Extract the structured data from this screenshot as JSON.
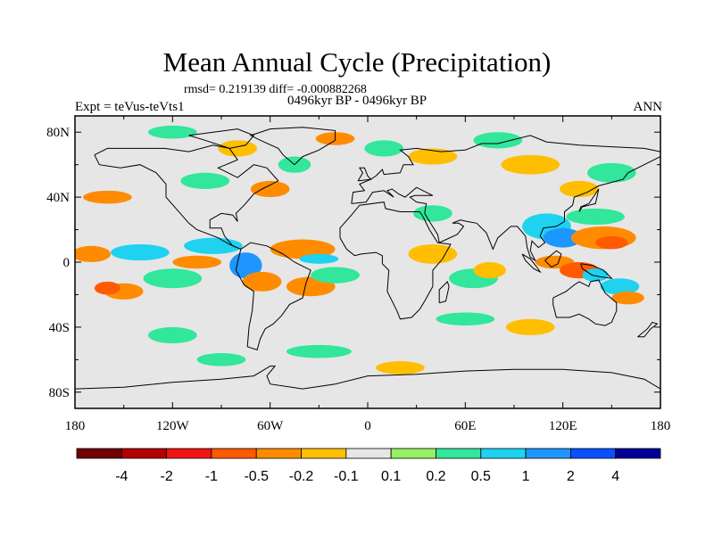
{
  "chart_data": {
    "type": "heatmap",
    "title": "Mean Annual Cycle (Precipitation)",
    "stats_text": "rmsd= 0.219139 diff= -0.000882268",
    "left_label": "Expt = teVus-teVts1",
    "center_label": "0496kyr BP - 0496kyr BP",
    "right_label": "ANN",
    "x_ticks": [
      {
        "value": -180,
        "label": "180"
      },
      {
        "value": -120,
        "label": "120W"
      },
      {
        "value": -60,
        "label": "60W"
      },
      {
        "value": 0,
        "label": "0"
      },
      {
        "value": 60,
        "label": "60E"
      },
      {
        "value": 120,
        "label": "120E"
      },
      {
        "value": 180,
        "label": "180"
      }
    ],
    "y_ticks": [
      {
        "value": 80,
        "label": "80N"
      },
      {
        "value": 40,
        "label": "40N"
      },
      {
        "value": 0,
        "label": "0"
      },
      {
        "value": -40,
        "label": "40S"
      },
      {
        "value": -80,
        "label": "80S"
      }
    ],
    "xlim": [
      -180,
      180
    ],
    "ylim": [
      -90,
      90
    ],
    "background_color": "#e6e6e6",
    "colorbar": {
      "colors": [
        "#6e0000",
        "#b40000",
        "#f01414",
        "#ff5a00",
        "#ff8c00",
        "#ffbe00",
        "#e6e6e6",
        "#96f064",
        "#32e69b",
        "#1ed2f0",
        "#1e96ff",
        "#0a50ff",
        "#000096"
      ],
      "levels": [
        "-4",
        "-2",
        "-1",
        "-0.5",
        "-0.2",
        "-0.1",
        "0.1",
        "0.2",
        "0.5",
        "1",
        "2",
        "4"
      ]
    },
    "anomaly_blobs": [
      {
        "lon": -170,
        "lat": 5,
        "rx": 12,
        "ry": 5,
        "level": -0.5
      },
      {
        "lon": -140,
        "lat": 6,
        "rx": 18,
        "ry": 5,
        "level": 0.5
      },
      {
        "lon": -150,
        "lat": -18,
        "rx": 12,
        "ry": 5,
        "level": -0.5
      },
      {
        "lon": -160,
        "lat": -16,
        "rx": 8,
        "ry": 4,
        "level": -1
      },
      {
        "lon": -95,
        "lat": 10,
        "rx": 18,
        "ry": 5,
        "level": 0.5
      },
      {
        "lon": -105,
        "lat": 0,
        "rx": 15,
        "ry": 4,
        "level": -0.5
      },
      {
        "lon": -120,
        "lat": -10,
        "rx": 18,
        "ry": 6,
        "level": 0.2
      },
      {
        "lon": -75,
        "lat": -2,
        "rx": 10,
        "ry": 8,
        "level": 1
      },
      {
        "lon": -65,
        "lat": -12,
        "rx": 12,
        "ry": 6,
        "level": -0.5
      },
      {
        "lon": -40,
        "lat": 8,
        "rx": 20,
        "ry": 6,
        "level": -0.5
      },
      {
        "lon": -35,
        "lat": -15,
        "rx": 15,
        "ry": 6,
        "level": -0.5
      },
      {
        "lon": -20,
        "lat": -8,
        "rx": 15,
        "ry": 5,
        "level": 0.2
      },
      {
        "lon": -30,
        "lat": 2,
        "rx": 12,
        "ry": 3,
        "level": 0.5
      },
      {
        "lon": 40,
        "lat": 5,
        "rx": 15,
        "ry": 6,
        "level": -0.2
      },
      {
        "lon": 65,
        "lat": -10,
        "rx": 15,
        "ry": 6,
        "level": 0.2
      },
      {
        "lon": 75,
        "lat": -5,
        "rx": 10,
        "ry": 5,
        "level": -0.2
      },
      {
        "lon": 110,
        "lat": 22,
        "rx": 15,
        "ry": 8,
        "level": 0.5
      },
      {
        "lon": 120,
        "lat": 15,
        "rx": 12,
        "ry": 6,
        "level": 1
      },
      {
        "lon": 145,
        "lat": 15,
        "rx": 20,
        "ry": 7,
        "level": -0.5
      },
      {
        "lon": 150,
        "lat": 12,
        "rx": 10,
        "ry": 4,
        "level": -1
      },
      {
        "lon": 140,
        "lat": 28,
        "rx": 18,
        "ry": 5,
        "level": 0.2
      },
      {
        "lon": 115,
        "lat": 0,
        "rx": 12,
        "ry": 4,
        "level": -0.5
      },
      {
        "lon": 130,
        "lat": -5,
        "rx": 12,
        "ry": 5,
        "level": -1
      },
      {
        "lon": 140,
        "lat": -8,
        "rx": 8,
        "ry": 4,
        "level": 0.5
      },
      {
        "lon": 155,
        "lat": -15,
        "rx": 12,
        "ry": 5,
        "level": 0.5
      },
      {
        "lon": 160,
        "lat": -22,
        "rx": 10,
        "ry": 4,
        "level": -0.5
      },
      {
        "lon": -160,
        "lat": 40,
        "rx": 15,
        "ry": 4,
        "level": -0.5
      },
      {
        "lon": -100,
        "lat": 50,
        "rx": 15,
        "ry": 5,
        "level": 0.2
      },
      {
        "lon": -60,
        "lat": 45,
        "rx": 12,
        "ry": 5,
        "level": -0.5
      },
      {
        "lon": -45,
        "lat": 60,
        "rx": 10,
        "ry": 5,
        "level": 0.2
      },
      {
        "lon": -80,
        "lat": 70,
        "rx": 12,
        "ry": 5,
        "level": -0.2
      },
      {
        "lon": -120,
        "lat": 80,
        "rx": 15,
        "ry": 4,
        "level": 0.2
      },
      {
        "lon": -20,
        "lat": 76,
        "rx": 12,
        "ry": 4,
        "level": -0.5
      },
      {
        "lon": 10,
        "lat": 70,
        "rx": 12,
        "ry": 5,
        "level": 0.2
      },
      {
        "lon": 40,
        "lat": 65,
        "rx": 15,
        "ry": 5,
        "level": -0.2
      },
      {
        "lon": 80,
        "lat": 75,
        "rx": 15,
        "ry": 5,
        "level": 0.2
      },
      {
        "lon": 100,
        "lat": 60,
        "rx": 18,
        "ry": 6,
        "level": -0.2
      },
      {
        "lon": 150,
        "lat": 55,
        "rx": 15,
        "ry": 6,
        "level": 0.2
      },
      {
        "lon": 130,
        "lat": 45,
        "rx": 12,
        "ry": 5,
        "level": -0.2
      },
      {
        "lon": 40,
        "lat": 30,
        "rx": 12,
        "ry": 5,
        "level": 0.2
      },
      {
        "lon": 60,
        "lat": -35,
        "rx": 18,
        "ry": 4,
        "level": 0.2
      },
      {
        "lon": 100,
        "lat": -40,
        "rx": 15,
        "ry": 5,
        "level": -0.2
      },
      {
        "lon": -120,
        "lat": -45,
        "rx": 15,
        "ry": 5,
        "level": 0.2
      },
      {
        "lon": -30,
        "lat": -55,
        "rx": 20,
        "ry": 4,
        "level": 0.2
      },
      {
        "lon": 20,
        "lat": -65,
        "rx": 15,
        "ry": 4,
        "level": -0.2
      },
      {
        "lon": -90,
        "lat": -60,
        "rx": 15,
        "ry": 4,
        "level": 0.2
      }
    ]
  }
}
